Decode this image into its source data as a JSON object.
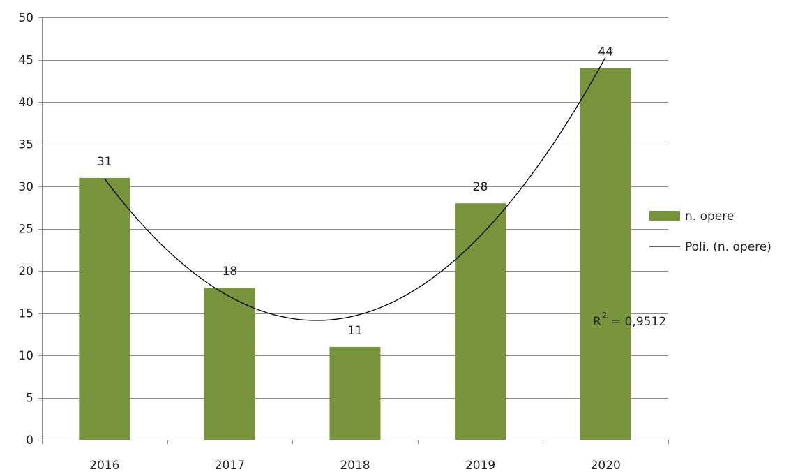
{
  "chart_data": {
    "type": "bar",
    "categories": [
      "2016",
      "2017",
      "2018",
      "2019",
      "2020"
    ],
    "series": [
      {
        "name": "n. opere",
        "values": [
          31,
          18,
          11,
          28,
          44
        ],
        "color": "#77933c"
      }
    ],
    "trendline": {
      "name": "Poli. (n. opere)",
      "kind": "polynomial",
      "order": 2,
      "r2_prefix": "R",
      "r2_exponent": "2",
      "r2_value": "= 0,9512",
      "color": "#000000"
    },
    "ylim": [
      0,
      50
    ],
    "yticks": [
      "0",
      "5",
      "10",
      "15",
      "20",
      "25",
      "30",
      "35",
      "40",
      "45",
      "50"
    ],
    "grid": true,
    "legend": "right"
  }
}
